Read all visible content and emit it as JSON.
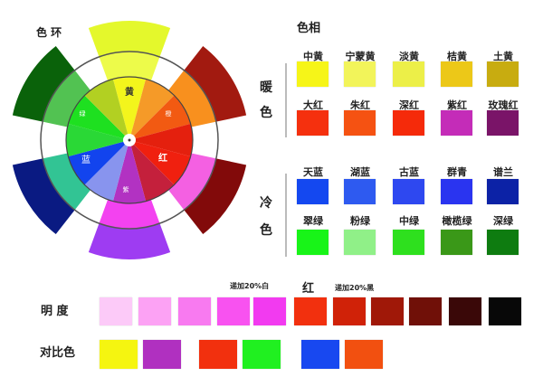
{
  "wheel": {
    "title": "色 环",
    "labels": {
      "yellow": "黄",
      "orange": "橙",
      "red": "红",
      "purple": "紫",
      "blue": "蓝",
      "green": "绿"
    },
    "inner_colors": [
      "#f3f51c",
      "#f59a28",
      "#f25a12",
      "#e4200e",
      "#f0200f",
      "#c4203c",
      "#b232c2",
      "#8894ee",
      "#1244ee",
      "#2ad836",
      "#1ee020",
      "#b2d022"
    ],
    "ring_colors": {
      "top": "#edfb4a",
      "top_right": "#f8901e",
      "bottom_right": "#f460e2",
      "bottom": "#f342f0",
      "bottom_left": "#32c494",
      "top_left": "#52c252"
    },
    "outer_colors": {
      "top": "#e4f82c",
      "top_right": "#a21a10",
      "bottom_right": "#820a0a",
      "bottom": "#9e3cf2",
      "bottom_left": "#0a1a82",
      "top_left": "#0a620a"
    }
  },
  "hue": {
    "title": "色相",
    "warm_label": [
      "暖",
      "色"
    ],
    "cool_label": [
      "冷",
      "色"
    ],
    "rows": [
      [
        {
          "name": "中黄",
          "color": "#f6f518"
        },
        {
          "name": "宁蒙黄",
          "color": "#f2f45a"
        },
        {
          "name": "淡黄",
          "color": "#ecef48"
        },
        {
          "name": "桔黄",
          "color": "#ecc818"
        },
        {
          "name": "土黄",
          "color": "#c8ac10"
        }
      ],
      [
        {
          "name": "大红",
          "color": "#f5300e"
        },
        {
          "name": "朱红",
          "color": "#f55212"
        },
        {
          "name": "深红",
          "color": "#f52a0a"
        },
        {
          "name": "紫红",
          "color": "#c42cb8"
        },
        {
          "name": "玫瑰红",
          "color": "#7a1468"
        }
      ],
      [
        {
          "name": "天蓝",
          "color": "#1448f0"
        },
        {
          "name": "湖蓝",
          "color": "#2e5af0"
        },
        {
          "name": "古蓝",
          "color": "#2e48f0"
        },
        {
          "name": "群青",
          "color": "#2a34f0"
        },
        {
          "name": "谱兰",
          "color": "#0c22a6"
        }
      ],
      [
        {
          "name": "翠绿",
          "color": "#18f418"
        },
        {
          "name": "粉绿",
          "color": "#90f088"
        },
        {
          "name": "中绿",
          "color": "#2ee01e"
        },
        {
          "name": "橄榄绿",
          "color": "#3a9818"
        },
        {
          "name": "深绿",
          "color": "#0e7c10"
        }
      ]
    ]
  },
  "brightness": {
    "label": "明 度",
    "add_white": "递加20%白",
    "center_label": "红",
    "add_black": "递加20%黑",
    "colors": [
      "#fccaf8",
      "#fca2f4",
      "#f87af0",
      "#f852f0",
      "#f23af0",
      "#f2300e",
      "#d02208",
      "#a01808",
      "#701008",
      "#3a0808",
      "#080808"
    ]
  },
  "contrast": {
    "label": "对比色",
    "pairs": [
      [
        "#f5f510",
        "#b030c0"
      ],
      [
        "#f2300e",
        "#20f020"
      ],
      [
        "#1848f0",
        "#f25010"
      ]
    ]
  }
}
